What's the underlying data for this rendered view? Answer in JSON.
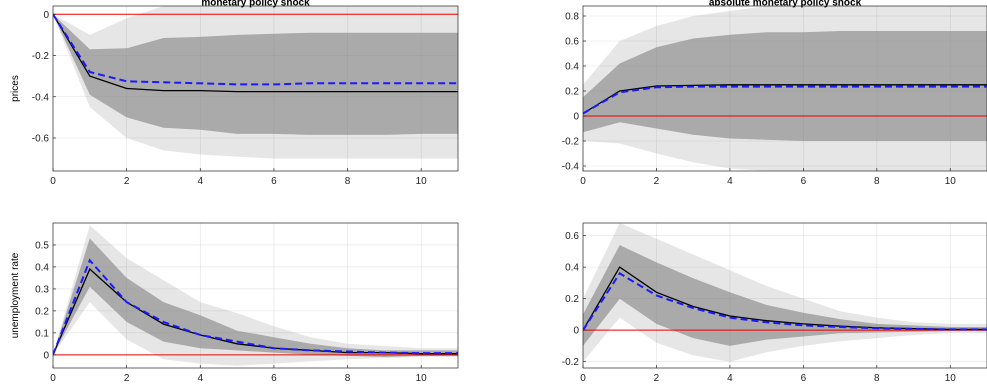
{
  "chart_data": [
    {
      "type": "area",
      "title": "monetary policy shock",
      "xlabel": "",
      "ylabel": "prices",
      "xlim": [
        0,
        11
      ],
      "ylim": [
        -0.76,
        0.04
      ],
      "xticks": [
        0,
        2,
        4,
        6,
        8,
        10
      ],
      "yticks": [
        0,
        -0.2,
        -0.4,
        -0.6
      ],
      "grid": true,
      "zero_line_color": "#ee0000",
      "x": [
        0,
        1,
        2,
        3,
        4,
        5,
        6,
        7,
        8,
        9,
        10,
        11
      ],
      "series": [
        {
          "style": "solid",
          "color": "#000000",
          "values": [
            0,
            -0.3,
            -0.36,
            -0.37,
            -0.37,
            -0.375,
            -0.375,
            -0.375,
            -0.375,
            -0.375,
            -0.375,
            -0.375
          ]
        },
        {
          "style": "dashed",
          "color": "#1a1aff",
          "values": [
            0,
            -0.28,
            -0.325,
            -0.33,
            -0.335,
            -0.34,
            -0.34,
            -0.335,
            -0.335,
            -0.335,
            -0.335,
            -0.335
          ]
        }
      ],
      "bands": [
        {
          "color": "#e6e6e6",
          "lower": [
            0,
            -0.45,
            -0.6,
            -0.66,
            -0.68,
            -0.69,
            -0.7,
            -0.7,
            -0.7,
            -0.7,
            -0.7,
            -0.7
          ],
          "upper": [
            0,
            -0.1,
            -0.02,
            0.04,
            0.04,
            0.04,
            0.04,
            0.04,
            0.04,
            0.04,
            0.04,
            0.04
          ]
        },
        {
          "color": "#aaaaaa",
          "lower": [
            0,
            -0.39,
            -0.5,
            -0.55,
            -0.56,
            -0.58,
            -0.58,
            -0.585,
            -0.585,
            -0.585,
            -0.58,
            -0.58
          ],
          "upper": [
            0,
            -0.17,
            -0.165,
            -0.115,
            -0.11,
            -0.1,
            -0.095,
            -0.09,
            -0.09,
            -0.09,
            -0.09,
            -0.09
          ]
        }
      ]
    },
    {
      "type": "area",
      "title": "absolute monetary policy shock",
      "xlabel": "",
      "ylabel": "",
      "xlim": [
        0,
        11
      ],
      "ylim": [
        -0.44,
        0.88
      ],
      "xticks": [
        0,
        2,
        4,
        6,
        8,
        10
      ],
      "yticks": [
        0.8,
        0.6,
        0.4,
        0.2,
        0,
        -0.2,
        -0.4
      ],
      "grid": true,
      "zero_line_color": "#ee0000",
      "x": [
        0,
        1,
        2,
        3,
        4,
        5,
        6,
        7,
        8,
        9,
        10,
        11
      ],
      "series": [
        {
          "style": "solid",
          "color": "#000000",
          "values": [
            0.02,
            0.2,
            0.24,
            0.245,
            0.25,
            0.25,
            0.25,
            0.25,
            0.25,
            0.25,
            0.25,
            0.25
          ]
        },
        {
          "style": "dashed",
          "color": "#1a1aff",
          "values": [
            0.02,
            0.19,
            0.23,
            0.235,
            0.235,
            0.235,
            0.235,
            0.235,
            0.235,
            0.235,
            0.235,
            0.235
          ]
        }
      ],
      "bands": [
        {
          "color": "#e6e6e6",
          "lower": [
            -0.2,
            -0.22,
            -0.3,
            -0.37,
            -0.42,
            -0.44,
            -0.44,
            -0.44,
            -0.44,
            -0.44,
            -0.44,
            -0.44
          ],
          "upper": [
            0.25,
            0.6,
            0.72,
            0.8,
            0.84,
            0.88,
            0.88,
            0.88,
            0.88,
            0.88,
            0.88,
            0.88
          ]
        },
        {
          "color": "#aaaaaa",
          "lower": [
            -0.13,
            -0.05,
            -0.1,
            -0.15,
            -0.18,
            -0.19,
            -0.2,
            -0.2,
            -0.2,
            -0.2,
            -0.2,
            -0.2
          ],
          "upper": [
            0.15,
            0.42,
            0.55,
            0.62,
            0.65,
            0.67,
            0.67,
            0.68,
            0.68,
            0.68,
            0.68,
            0.68
          ]
        }
      ]
    },
    {
      "type": "area",
      "title": "",
      "xlabel": "",
      "ylabel": "unemployment rate",
      "xlim": [
        0,
        11
      ],
      "ylim": [
        -0.06,
        0.6
      ],
      "xticks": [
        0,
        2,
        4,
        6,
        8,
        10
      ],
      "yticks": [
        0.5,
        0.4,
        0.3,
        0.2,
        0.1,
        0
      ],
      "grid": true,
      "zero_line_color": "#ee0000",
      "x": [
        0,
        1,
        2,
        3,
        4,
        5,
        6,
        7,
        8,
        9,
        10,
        11
      ],
      "series": [
        {
          "style": "solid",
          "color": "#000000",
          "values": [
            0,
            0.39,
            0.24,
            0.14,
            0.09,
            0.05,
            0.03,
            0.02,
            0.01,
            0.01,
            0.005,
            0.005
          ]
        },
        {
          "style": "dashed",
          "color": "#1a1aff",
          "values": [
            0,
            0.43,
            0.24,
            0.15,
            0.09,
            0.06,
            0.03,
            0.02,
            0.015,
            0.01,
            0.008,
            0.008
          ]
        }
      ],
      "bands": [
        {
          "color": "#e6e6e6",
          "lower": [
            0,
            0.24,
            0.07,
            -0.02,
            -0.04,
            -0.05,
            -0.04,
            -0.03,
            -0.02,
            -0.015,
            -0.01,
            -0.01
          ],
          "upper": [
            0,
            0.59,
            0.44,
            0.34,
            0.24,
            0.19,
            0.13,
            0.08,
            0.05,
            0.04,
            0.03,
            0.03
          ]
        },
        {
          "color": "#aaaaaa",
          "lower": [
            0,
            0.31,
            0.15,
            0.06,
            0.03,
            0.02,
            0.01,
            0.0,
            -0.005,
            -0.01,
            -0.005,
            -0.005
          ],
          "upper": [
            0,
            0.53,
            0.35,
            0.24,
            0.18,
            0.11,
            0.08,
            0.05,
            0.03,
            0.02,
            0.02,
            0.02
          ]
        }
      ]
    },
    {
      "type": "area",
      "title": "",
      "xlabel": "",
      "ylabel": "",
      "xlim": [
        0,
        11
      ],
      "ylim": [
        -0.24,
        0.68
      ],
      "xticks": [
        0,
        2,
        4,
        6,
        8,
        10
      ],
      "yticks": [
        0.6,
        0.4,
        0.2,
        0,
        -0.2
      ],
      "grid": true,
      "zero_line_color": "#ee0000",
      "x": [
        0,
        1,
        2,
        3,
        4,
        5,
        6,
        7,
        8,
        9,
        10,
        11
      ],
      "series": [
        {
          "style": "solid",
          "color": "#000000",
          "values": [
            0,
            0.4,
            0.24,
            0.15,
            0.09,
            0.06,
            0.04,
            0.025,
            0.015,
            0.01,
            0.005,
            0.005
          ]
        },
        {
          "style": "dashed",
          "color": "#1a1aff",
          "values": [
            0,
            0.36,
            0.22,
            0.14,
            0.08,
            0.05,
            0.03,
            0.02,
            0.012,
            0.008,
            0.005,
            0.005
          ]
        }
      ],
      "bands": [
        {
          "color": "#e6e6e6",
          "lower": [
            -0.2,
            0.08,
            -0.08,
            -0.16,
            -0.2,
            -0.14,
            -0.1,
            -0.07,
            -0.05,
            -0.03,
            -0.02,
            -0.02
          ],
          "upper": [
            0.2,
            0.68,
            0.58,
            0.48,
            0.38,
            0.28,
            0.2,
            0.12,
            0.08,
            0.05,
            0.04,
            0.04
          ]
        },
        {
          "color": "#aaaaaa",
          "lower": [
            -0.1,
            0.2,
            0.04,
            -0.05,
            -0.1,
            -0.06,
            -0.04,
            -0.02,
            -0.015,
            -0.01,
            -0.005,
            -0.005
          ],
          "upper": [
            0.1,
            0.54,
            0.43,
            0.33,
            0.24,
            0.16,
            0.11,
            0.07,
            0.04,
            0.03,
            0.02,
            0.02
          ]
        }
      ]
    }
  ]
}
